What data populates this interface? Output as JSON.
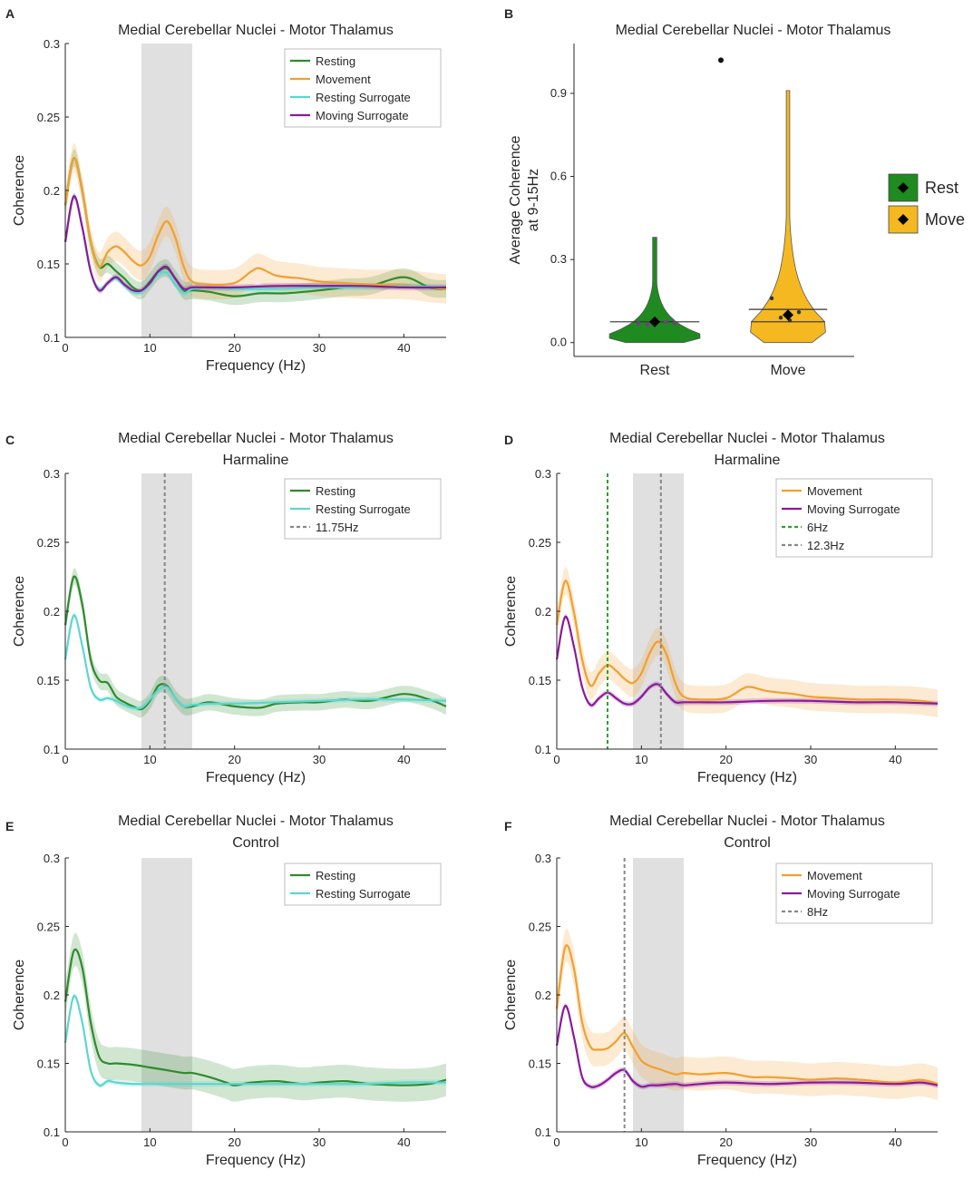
{
  "colors": {
    "resting": "#2e8b2e",
    "movement": "#f0a030",
    "resting_surrogate": "#5cd6cf",
    "moving_surrogate": "#8b1a9a",
    "band_shade": "#e0e0e0",
    "rest_violin": "#1f8a1f",
    "move_violin": "#f5b820",
    "vline_grey": "#888888",
    "vline_green": "#2ea02e"
  },
  "chart_data": [
    {
      "id": "A",
      "type": "line",
      "letter": "A",
      "title": [
        "Medial Cerebellar Nuclei - Motor Thalamus"
      ],
      "xlabel": "Frequency (Hz)",
      "ylabel": "Coherence",
      "xlim": [
        0,
        45
      ],
      "ylim": [
        0.1,
        0.3
      ],
      "xticks": [
        0,
        10,
        20,
        30,
        40
      ],
      "yticks": [
        0.1,
        0.15,
        0.2,
        0.25,
        0.3
      ],
      "band": [
        9,
        15
      ],
      "legend_position": "top-right",
      "series": [
        {
          "name": "Resting",
          "color_key": "resting",
          "band": 0.006,
          "x": [
            0,
            1,
            2,
            3,
            4,
            5,
            6,
            7,
            8,
            9,
            10,
            11,
            12,
            13,
            14,
            15,
            17,
            20,
            23,
            26,
            30,
            33,
            36,
            40,
            43,
            45
          ],
          "y": [
            0.19,
            0.222,
            0.2,
            0.165,
            0.148,
            0.15,
            0.145,
            0.14,
            0.134,
            0.132,
            0.138,
            0.145,
            0.147,
            0.14,
            0.132,
            0.132,
            0.131,
            0.128,
            0.13,
            0.13,
            0.132,
            0.134,
            0.135,
            0.141,
            0.134,
            0.133
          ]
        },
        {
          "name": "Movement",
          "color_key": "movement",
          "band": 0.01,
          "x": [
            0,
            1,
            2,
            3,
            4,
            5,
            6,
            7,
            8,
            9,
            10,
            11,
            12,
            13,
            14,
            15,
            17,
            20,
            22,
            23,
            25,
            28,
            30,
            33,
            36,
            40,
            43,
            45
          ],
          "y": [
            0.19,
            0.222,
            0.2,
            0.165,
            0.148,
            0.158,
            0.162,
            0.158,
            0.152,
            0.149,
            0.155,
            0.17,
            0.179,
            0.168,
            0.148,
            0.138,
            0.136,
            0.137,
            0.145,
            0.147,
            0.142,
            0.14,
            0.138,
            0.137,
            0.136,
            0.136,
            0.134,
            0.133
          ]
        },
        {
          "name": "Resting Surrogate",
          "color_key": "resting_surrogate",
          "band": 0.002,
          "x": [
            0,
            1,
            2,
            3,
            4,
            5,
            6,
            7,
            8,
            9,
            10,
            11,
            12,
            13,
            14,
            15,
            17,
            20,
            25,
            30,
            35,
            40,
            45
          ],
          "y": [
            0.165,
            0.196,
            0.175,
            0.145,
            0.133,
            0.137,
            0.14,
            0.135,
            0.131,
            0.131,
            0.136,
            0.143,
            0.144,
            0.136,
            0.13,
            0.133,
            0.134,
            0.133,
            0.133,
            0.134,
            0.134,
            0.135,
            0.134
          ]
        },
        {
          "name": "Moving Surrogate",
          "color_key": "moving_surrogate",
          "band": 0.002,
          "x": [
            0,
            1,
            2,
            3,
            4,
            5,
            6,
            7,
            8,
            9,
            10,
            11,
            12,
            13,
            14,
            15,
            17,
            20,
            25,
            30,
            35,
            40,
            45
          ],
          "y": [
            0.165,
            0.196,
            0.175,
            0.145,
            0.132,
            0.137,
            0.141,
            0.136,
            0.132,
            0.132,
            0.137,
            0.145,
            0.148,
            0.14,
            0.133,
            0.134,
            0.134,
            0.134,
            0.135,
            0.135,
            0.135,
            0.134,
            0.134
          ]
        }
      ]
    },
    {
      "id": "B",
      "type": "violin",
      "letter": "B",
      "title": [
        "Medial Cerebellar Nuclei - Motor Thalamus"
      ],
      "ylabel": [
        "Average Coherence",
        "at 9-15Hz"
      ],
      "ylim": [
        -0.05,
        1.08
      ],
      "yticks": [
        "0.0",
        "0.3",
        "0.6",
        "0.9"
      ],
      "ytick_values": [
        0.0,
        0.3,
        0.6,
        0.9
      ],
      "legend_position": "right",
      "groups": [
        {
          "name": "Rest",
          "color_key": "rest_violin",
          "mean": 0.075,
          "median": 0.075,
          "max": 0.38,
          "min": 0.0,
          "points": [
            0.07,
            0.065,
            0.08,
            0.075,
            0.07
          ]
        },
        {
          "name": "Move",
          "color_key": "move_violin",
          "mean": 0.1,
          "median": 0.075,
          "q_upper": 0.12,
          "max": 0.91,
          "min": 0.0,
          "points": [
            0.16,
            0.09,
            0.08,
            0.11
          ],
          "outlier": 1.02
        }
      ]
    },
    {
      "id": "C",
      "type": "line",
      "letter": "C",
      "title": [
        "Medial Cerebellar Nuclei - Motor Thalamus",
        "Harmaline"
      ],
      "xlabel": "Frequency (Hz)",
      "ylabel": "Coherence",
      "xlim": [
        0,
        45
      ],
      "ylim": [
        0.1,
        0.3
      ],
      "xticks": [
        0,
        10,
        20,
        30,
        40
      ],
      "yticks": [
        0.1,
        0.15,
        0.2,
        0.25,
        0.3
      ],
      "band": [
        9,
        15
      ],
      "legend_position": "top-right",
      "vlines": [
        {
          "x": 11.75,
          "label": "11.75Hz",
          "color_key": "vline_grey"
        }
      ],
      "series": [
        {
          "name": "Resting",
          "color_key": "resting",
          "band": 0.006,
          "x": [
            0,
            1,
            2,
            3,
            4,
            5,
            6,
            7,
            8,
            9,
            10,
            11,
            12,
            13,
            14,
            15,
            17,
            20,
            23,
            25,
            28,
            30,
            33,
            36,
            40,
            43,
            45
          ],
          "y": [
            0.19,
            0.225,
            0.205,
            0.165,
            0.15,
            0.148,
            0.138,
            0.134,
            0.131,
            0.129,
            0.135,
            0.146,
            0.146,
            0.137,
            0.131,
            0.131,
            0.134,
            0.131,
            0.13,
            0.133,
            0.134,
            0.134,
            0.136,
            0.135,
            0.14,
            0.136,
            0.131
          ]
        },
        {
          "name": "Resting Surrogate",
          "color_key": "resting_surrogate",
          "band": 0.002,
          "x": [
            0,
            1,
            2,
            3,
            4,
            5,
            6,
            7,
            8,
            9,
            10,
            11,
            12,
            13,
            14,
            15,
            17,
            20,
            25,
            30,
            35,
            40,
            45
          ],
          "y": [
            0.165,
            0.197,
            0.175,
            0.145,
            0.136,
            0.137,
            0.135,
            0.132,
            0.13,
            0.13,
            0.136,
            0.143,
            0.145,
            0.137,
            0.131,
            0.132,
            0.133,
            0.133,
            0.134,
            0.135,
            0.136,
            0.136,
            0.135
          ]
        }
      ]
    },
    {
      "id": "D",
      "type": "line",
      "letter": "D",
      "title": [
        "Medial Cerebellar Nuclei - Motor Thalamus",
        "Harmaline"
      ],
      "xlabel": "Frequency (Hz)",
      "ylabel": "Coherence",
      "xlim": [
        0,
        45
      ],
      "ylim": [
        0.1,
        0.3
      ],
      "xticks": [
        0,
        10,
        20,
        30,
        40
      ],
      "yticks": [
        0.1,
        0.15,
        0.2,
        0.25,
        0.3
      ],
      "band": [
        9,
        15
      ],
      "legend_position": "top-right",
      "vlines": [
        {
          "x": 6,
          "label": "6Hz",
          "color_key": "vline_green"
        },
        {
          "x": 12.3,
          "label": "12.3Hz",
          "color_key": "vline_grey"
        }
      ],
      "series": [
        {
          "name": "Movement",
          "color_key": "movement",
          "band": 0.01,
          "x": [
            0,
            1,
            2,
            3,
            4,
            5,
            6,
            7,
            8,
            9,
            10,
            11,
            12,
            13,
            14,
            15,
            17,
            20,
            22,
            23,
            25,
            28,
            30,
            33,
            36,
            40,
            43,
            45
          ],
          "y": [
            0.19,
            0.222,
            0.2,
            0.165,
            0.146,
            0.155,
            0.161,
            0.157,
            0.151,
            0.148,
            0.155,
            0.17,
            0.178,
            0.168,
            0.148,
            0.138,
            0.136,
            0.137,
            0.144,
            0.145,
            0.142,
            0.14,
            0.138,
            0.137,
            0.136,
            0.136,
            0.135,
            0.133
          ]
        },
        {
          "name": "Moving Surrogate",
          "color_key": "moving_surrogate",
          "band": 0.002,
          "x": [
            0,
            1,
            2,
            3,
            4,
            5,
            6,
            7,
            8,
            9,
            10,
            11,
            12,
            13,
            14,
            15,
            17,
            20,
            25,
            30,
            35,
            40,
            45
          ],
          "y": [
            0.165,
            0.196,
            0.175,
            0.145,
            0.132,
            0.137,
            0.141,
            0.137,
            0.133,
            0.133,
            0.138,
            0.145,
            0.147,
            0.14,
            0.134,
            0.134,
            0.134,
            0.134,
            0.135,
            0.135,
            0.134,
            0.134,
            0.133
          ]
        }
      ]
    },
    {
      "id": "E",
      "type": "line",
      "letter": "E",
      "title": [
        "Medial Cerebellar Nuclei - Motor Thalamus",
        "Control"
      ],
      "xlabel": "Frequency (Hz)",
      "ylabel": "Coherence",
      "xlim": [
        0,
        45
      ],
      "ylim": [
        0.1,
        0.3
      ],
      "xticks": [
        0,
        10,
        20,
        30,
        40
      ],
      "yticks": [
        0.1,
        0.15,
        0.2,
        0.25,
        0.3
      ],
      "band": [
        9,
        15
      ],
      "legend_position": "top-right",
      "series": [
        {
          "name": "Resting",
          "color_key": "resting",
          "band": 0.012,
          "x": [
            0,
            1,
            2,
            3,
            4,
            5,
            6,
            8,
            10,
            12,
            14,
            15,
            17,
            19,
            20,
            22,
            25,
            28,
            30,
            33,
            36,
            40,
            43,
            45
          ],
          "y": [
            0.195,
            0.232,
            0.22,
            0.18,
            0.155,
            0.15,
            0.15,
            0.149,
            0.147,
            0.145,
            0.143,
            0.143,
            0.14,
            0.136,
            0.134,
            0.136,
            0.137,
            0.135,
            0.136,
            0.137,
            0.135,
            0.134,
            0.135,
            0.138
          ]
        },
        {
          "name": "Resting Surrogate",
          "color_key": "resting_surrogate",
          "band": 0.002,
          "x": [
            0,
            1,
            2,
            3,
            4,
            5,
            6,
            8,
            10,
            15,
            20,
            25,
            30,
            35,
            40,
            45
          ],
          "y": [
            0.165,
            0.199,
            0.18,
            0.145,
            0.134,
            0.137,
            0.136,
            0.135,
            0.135,
            0.135,
            0.135,
            0.135,
            0.135,
            0.135,
            0.136,
            0.136
          ]
        }
      ]
    },
    {
      "id": "F",
      "type": "line",
      "letter": "F",
      "title": [
        "Medial Cerebellar Nuclei - Motor Thalamus",
        "Control"
      ],
      "xlabel": "Frequency (Hz)",
      "ylabel": "Coherence",
      "xlim": [
        0,
        45
      ],
      "ylim": [
        0.1,
        0.3
      ],
      "xticks": [
        0,
        10,
        20,
        30,
        40
      ],
      "yticks": [
        0.1,
        0.15,
        0.2,
        0.25,
        0.3
      ],
      "band": [
        9,
        15
      ],
      "legend_position": "top-right",
      "vlines": [
        {
          "x": 8,
          "label": "8Hz",
          "color_key": "vline_grey"
        }
      ],
      "series": [
        {
          "name": "Movement",
          "color_key": "movement",
          "band": 0.012,
          "x": [
            0,
            1,
            2,
            3,
            4,
            5,
            6,
            7,
            8,
            9,
            10,
            11,
            12,
            14,
            15,
            17,
            20,
            23,
            25,
            28,
            30,
            33,
            36,
            40,
            43,
            45
          ],
          "y": [
            0.19,
            0.235,
            0.22,
            0.18,
            0.162,
            0.16,
            0.161,
            0.166,
            0.172,
            0.162,
            0.152,
            0.148,
            0.146,
            0.142,
            0.143,
            0.142,
            0.143,
            0.14,
            0.14,
            0.139,
            0.138,
            0.139,
            0.138,
            0.136,
            0.138,
            0.135
          ]
        },
        {
          "name": "Moving Surrogate",
          "color_key": "moving_surrogate",
          "band": 0.002,
          "x": [
            0,
            1,
            2,
            3,
            4,
            5,
            6,
            7,
            8,
            9,
            10,
            11,
            12,
            14,
            15,
            17,
            20,
            25,
            30,
            35,
            40,
            43,
            45
          ],
          "y": [
            0.163,
            0.192,
            0.17,
            0.14,
            0.133,
            0.134,
            0.138,
            0.143,
            0.145,
            0.137,
            0.133,
            0.134,
            0.134,
            0.135,
            0.134,
            0.135,
            0.136,
            0.135,
            0.136,
            0.136,
            0.135,
            0.136,
            0.134
          ]
        }
      ]
    }
  ]
}
